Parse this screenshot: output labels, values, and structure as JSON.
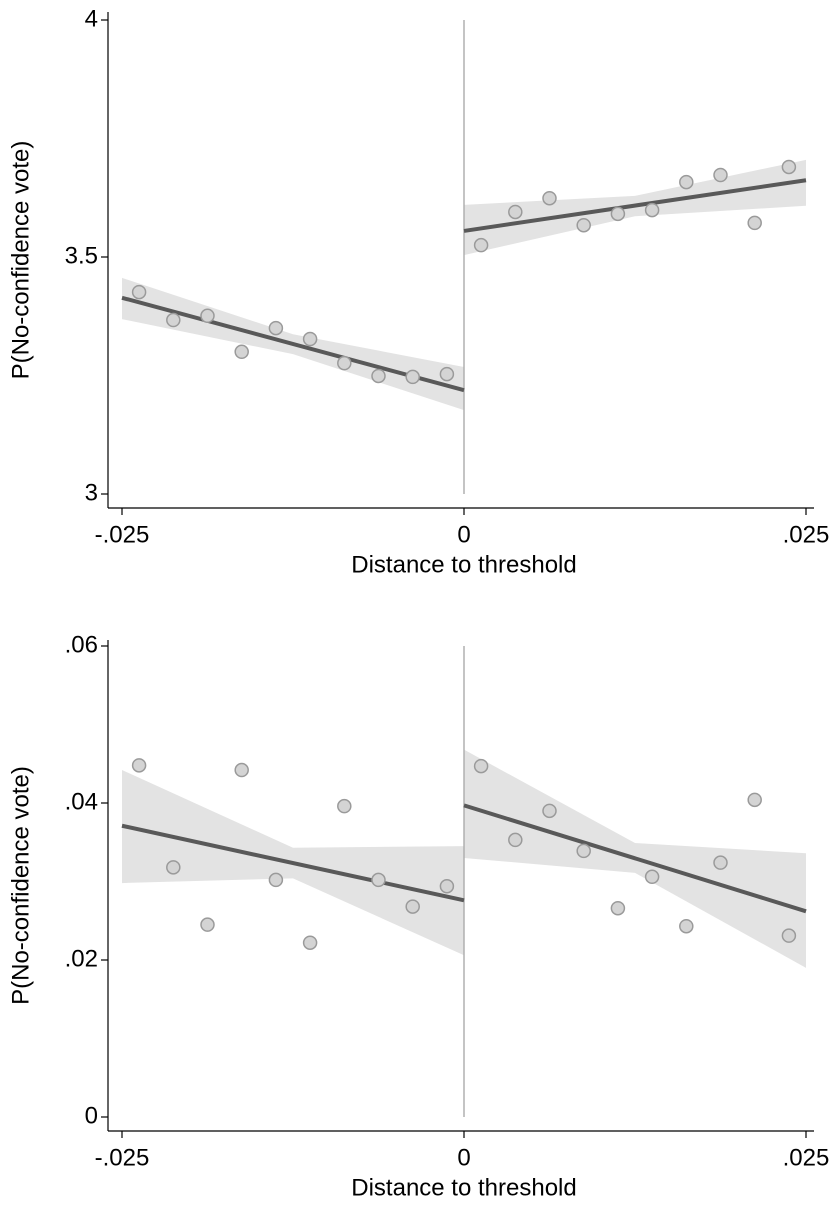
{
  "chart_data": [
    {
      "type": "scatter",
      "ylabel": "P(No-confidence vote)",
      "xlabel": "Distance to threshold",
      "xlim": [
        -0.025,
        0.025
      ],
      "xticks": [
        {
          "value": -0.025,
          "label": "-.025"
        },
        0,
        {
          "value": 0.025,
          "label": ".025"
        }
      ],
      "ylim": [
        3,
        4
      ],
      "yticks": [
        3,
        3.5,
        4
      ],
      "cutoff": 0,
      "series": [
        {
          "color": "#d4d4d4",
          "x": [
            -0.02375,
            -0.02125,
            -0.01875,
            -0.01625,
            -0.01375,
            -0.01125,
            -0.00875,
            -0.00625,
            -0.00375,
            -0.00125
          ],
          "values": [
            3.426,
            3.367,
            3.376,
            3.3,
            3.35,
            3.327,
            3.276,
            3.249,
            3.247,
            3.253
          ]
        },
        {
          "color": "#d4d4d4",
          "x": [
            0.00125,
            0.00375,
            0.00625,
            0.00875,
            0.01125,
            0.01375,
            0.01625,
            0.01875,
            0.02125,
            0.02375
          ],
          "values": [
            3.525,
            3.595,
            3.624,
            3.567,
            3.591,
            3.599,
            3.658,
            3.673,
            3.572,
            3.69
          ]
        }
      ],
      "fits": [
        {
          "color": "#595959",
          "band_color": "#e3e3e3",
          "x": [
            -0.025,
            0
          ],
          "values": [
            3.414,
            3.219
          ],
          "ci_x": [
            -0.025,
            -0.0125,
            0
          ],
          "ci_upper": [
            3.456,
            3.337,
            3.268
          ],
          "ci_lower": [
            3.369,
            3.295,
            3.177
          ]
        },
        {
          "color": "#595959",
          "band_color": "#e3e3e3",
          "x": [
            0,
            0.025
          ],
          "values": [
            3.555,
            3.662
          ],
          "ci_x": [
            0,
            0.0125,
            0.025
          ],
          "ci_upper": [
            3.61,
            3.629,
            3.705
          ],
          "ci_lower": [
            3.504,
            3.586,
            3.608
          ]
        }
      ]
    },
    {
      "type": "scatter",
      "ylabel": "P(No-confidence vote)",
      "xlabel": "Distance to threshold",
      "xlim": [
        -0.025,
        0.025
      ],
      "xticks": [
        {
          "value": -0.025,
          "label": "-.025"
        },
        0,
        {
          "value": 0.025,
          "label": ".025"
        }
      ],
      "ylim": [
        0,
        0.06
      ],
      "yticks": [
        0,
        {
          "value": 0.02,
          "label": ".02"
        },
        {
          "value": 0.04,
          "label": ".04"
        },
        {
          "value": 0.06,
          "label": ".06"
        }
      ],
      "cutoff": 0,
      "series": [
        {
          "color": "#d4d4d4",
          "x": [
            -0.02375,
            -0.02125,
            -0.01875,
            -0.01625,
            -0.01375,
            -0.01125,
            -0.00875,
            -0.00625,
            -0.00375,
            -0.00125
          ],
          "values": [
            0.0448,
            0.0318,
            0.0245,
            0.0442,
            0.0302,
            0.0222,
            0.0396,
            0.0302,
            0.0268,
            0.0294
          ]
        },
        {
          "color": "#d4d4d4",
          "x": [
            0.00125,
            0.00375,
            0.00625,
            0.00875,
            0.01125,
            0.01375,
            0.01625,
            0.01875,
            0.02125,
            0.02375
          ],
          "values": [
            0.0447,
            0.0353,
            0.039,
            0.0339,
            0.0266,
            0.0306,
            0.0243,
            0.0324,
            0.0404,
            0.0231
          ]
        }
      ],
      "fits": [
        {
          "color": "#595959",
          "band_color": "#e3e3e3",
          "x": [
            -0.025,
            0
          ],
          "values": [
            0.0371,
            0.0276
          ],
          "ci_x": [
            -0.025,
            -0.0125,
            0
          ],
          "ci_upper": [
            0.0442,
            0.0343,
            0.0345
          ],
          "ci_lower": [
            0.0298,
            0.0304,
            0.0206
          ]
        },
        {
          "color": "#595959",
          "band_color": "#e3e3e3",
          "x": [
            0,
            0.025
          ],
          "values": [
            0.0397,
            0.0262
          ],
          "ci_x": [
            0,
            0.0125,
            0.025
          ],
          "ci_upper": [
            0.0468,
            0.0349,
            0.0336
          ],
          "ci_lower": [
            0.033,
            0.0311,
            0.019
          ]
        }
      ]
    }
  ]
}
